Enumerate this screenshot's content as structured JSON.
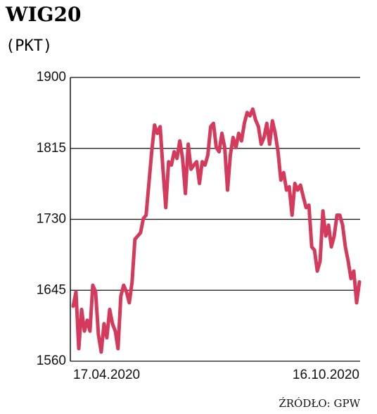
{
  "chart_data": {
    "type": "line",
    "title": "WIG20",
    "subtitle": "(PKT)",
    "source": "ŹRÓDŁO: GPW",
    "categories": [
      "17.04.2020",
      null,
      null,
      null,
      null,
      null,
      null,
      null,
      null,
      null,
      null,
      null,
      null,
      null,
      null,
      null,
      null,
      null,
      null,
      null,
      null,
      null,
      null,
      null,
      null,
      null,
      null,
      null,
      null,
      null,
      null,
      null,
      null,
      null,
      null,
      null,
      null,
      null,
      null,
      null,
      null,
      null,
      null,
      null,
      null,
      null,
      null,
      null,
      null,
      null,
      null,
      null,
      null,
      null,
      null,
      null,
      null,
      null,
      null,
      null,
      null,
      null,
      null,
      null,
      null,
      null,
      null,
      null,
      null,
      null,
      null,
      null,
      null,
      null,
      null,
      null,
      null,
      null,
      null,
      null,
      null,
      null,
      null,
      null,
      null,
      null,
      null,
      null,
      null,
      null,
      null,
      null,
      null,
      null,
      null,
      null,
      null,
      null,
      null,
      null,
      null,
      null,
      "16.10.2020"
    ],
    "values": [
      1626,
      1643,
      1575,
      1622,
      1596,
      1609,
      1596,
      1651,
      1643,
      1592,
      1571,
      1605,
      1588,
      1622,
      1605,
      1596,
      1575,
      1638,
      1651,
      1643,
      1630,
      1655,
      1706,
      1710,
      1714,
      1731,
      1735,
      1773,
      1811,
      1843,
      1833,
      1841,
      1790,
      1744,
      1799,
      1795,
      1811,
      1803,
      1824,
      1803,
      1761,
      1820,
      1790,
      1795,
      1799,
      1773,
      1799,
      1795,
      1807,
      1841,
      1845,
      1816,
      1811,
      1833,
      1816,
      1765,
      1807,
      1828,
      1816,
      1833,
      1824,
      1845,
      1858,
      1854,
      1862,
      1849,
      1841,
      1820,
      1828,
      1845,
      1820,
      1848,
      1833,
      1811,
      1777,
      1786,
      1765,
      1769,
      1735,
      1773,
      1765,
      1771,
      1757,
      1744,
      1747,
      1697,
      1693,
      1668,
      1680,
      1740,
      1710,
      1723,
      1697,
      1710,
      1735,
      1735,
      1723,
      1697,
      1680,
      1659,
      1668,
      1630,
      1655
    ],
    "color": "#d43a5c",
    "ylim": [
      1560,
      1900
    ],
    "yticks": [
      1560,
      1645,
      1730,
      1815,
      1900
    ],
    "grid": true
  }
}
